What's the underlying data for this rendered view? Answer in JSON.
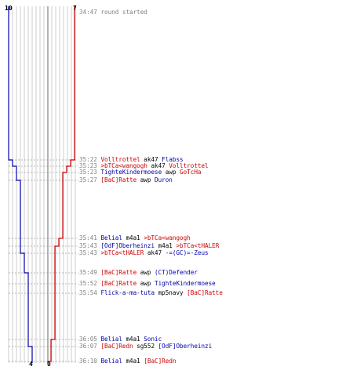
{
  "colors": {
    "blue_team": "#0000aa",
    "red_team": "#cc0000",
    "grid": "#c0c0c0",
    "timestamp": "#808080"
  },
  "scores": {
    "blue_start": "10",
    "red_start": "7",
    "blue_end": "4",
    "red_end": "0"
  },
  "chart_data": {
    "type": "line",
    "series": [
      {
        "name": "",
        "color": "#0000aa",
        "start": 10,
        "end": 4
      },
      {
        "name": "",
        "color": "#cc0000",
        "start": 7,
        "end": 0
      }
    ]
  },
  "events": [
    {
      "time": "34:47",
      "killer": "",
      "weapon": "round started",
      "victim": "",
      "killer_team": "none",
      "victim_team": "none"
    },
    {
      "time": "35:22",
      "killer": "Volltrottel",
      "weapon": "ak47",
      "victim": "Flabss",
      "killer_team": "red",
      "victim_team": "blue"
    },
    {
      "time": "35:23",
      "killer": ">bTCa<wangogh",
      "weapon": "ak47",
      "victim": "Volltrottel",
      "killer_team": "red",
      "victim_team": "red"
    },
    {
      "time": "35:23",
      "killer": "TighteKindermoese",
      "weapon": "awp",
      "victim": "GoTcHa",
      "killer_team": "blue",
      "victim_team": "red"
    },
    {
      "time": "35:27",
      "killer": "[BaC]Ratte",
      "weapon": "awp",
      "victim": "Duron",
      "killer_team": "red",
      "victim_team": "blue"
    },
    {
      "time": "35:41",
      "killer": "Belial",
      "weapon": "m4a1",
      "victim": ">bTCa<wangogh",
      "killer_team": "blue",
      "victim_team": "red"
    },
    {
      "time": "35:43",
      "killer": "[OdF]Oberheinzi",
      "weapon": "m4a1",
      "victim": ">bTCa<tHALER",
      "killer_team": "blue",
      "victim_team": "red"
    },
    {
      "time": "35:43",
      "killer": ">bTCa<tHALER",
      "weapon": "ak47",
      "victim": "-=(GC)=-Zeus",
      "killer_team": "red",
      "victim_team": "blue"
    },
    {
      "time": "35:49",
      "killer": "[BaC]Ratte",
      "weapon": "awp",
      "victim": "(CT)Defender",
      "killer_team": "red",
      "victim_team": "blue"
    },
    {
      "time": "35:52",
      "killer": "[BaC]Ratte",
      "weapon": "awp",
      "victim": "TighteKindermoese",
      "killer_team": "red",
      "victim_team": "blue"
    },
    {
      "time": "35:54",
      "killer": "Flick-a-ma-tuta",
      "weapon": "mp5navy",
      "victim": "[BaC]Ratte",
      "killer_team": "blue",
      "victim_team": "red"
    },
    {
      "time": "36:05",
      "killer": "Belial",
      "weapon": "m4a1",
      "victim": "Sonic",
      "killer_team": "blue",
      "victim_team": "blue"
    },
    {
      "time": "36:07",
      "killer": "[BaC]Redn",
      "weapon": "sg552",
      "victim": "[OdF]Oberheinzi",
      "killer_team": "red",
      "victim_team": "blue"
    },
    {
      "time": "36:10",
      "killer": "Belial",
      "weapon": "m4a1",
      "victim": "[BaC]Redn",
      "killer_team": "blue",
      "victim_team": "red"
    }
  ]
}
